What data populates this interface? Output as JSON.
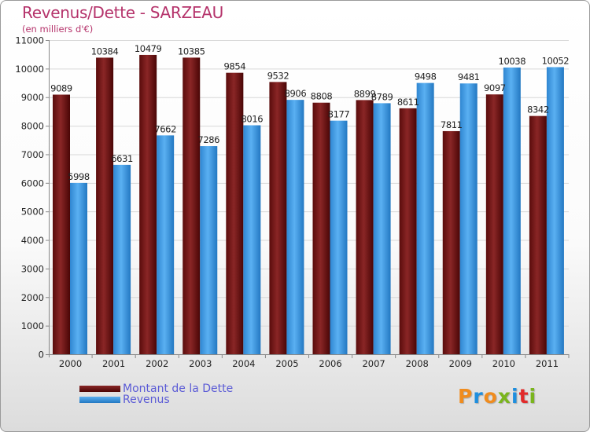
{
  "title": "Revenus/Dette - SARZEAU",
  "subtitle": "(en milliers d'€)",
  "logo": {
    "text": "Proxiti",
    "colors": [
      "#f08c1e",
      "#1e8ede",
      "#f08c1e",
      "#7ab51d",
      "#1e8ede",
      "#e22b2b",
      "#7ab51d"
    ]
  },
  "colors": {
    "dette": "#6e1414",
    "revenus": "#3a97e0"
  },
  "legend": [
    {
      "label": "Montant de la Dette",
      "color": "#6e1414"
    },
    {
      "label": "Revenus",
      "color": "#3a97e0"
    }
  ],
  "chart_data": {
    "type": "bar",
    "categories": [
      "2000",
      "2001",
      "2002",
      "2003",
      "2004",
      "2005",
      "2006",
      "2007",
      "2008",
      "2009",
      "2010",
      "2011"
    ],
    "series": [
      {
        "name": "Montant de la Dette",
        "values": [
          9089,
          10384,
          10479,
          10385,
          9854,
          9532,
          8808,
          8899,
          8611,
          7811,
          9097,
          8342
        ]
      },
      {
        "name": "Revenus",
        "values": [
          5998,
          6631,
          7662,
          7286,
          8016,
          8906,
          8177,
          8789,
          9498,
          9481,
          10038,
          10052
        ]
      }
    ],
    "yticks": [
      "0",
      "1000",
      "2000",
      "3000",
      "4000",
      "5000",
      "6000",
      "7000",
      "8000",
      "9000",
      "10000",
      "11000"
    ],
    "ylim": [
      0,
      11000
    ],
    "grid": true,
    "legend_position": "bottom-left"
  }
}
